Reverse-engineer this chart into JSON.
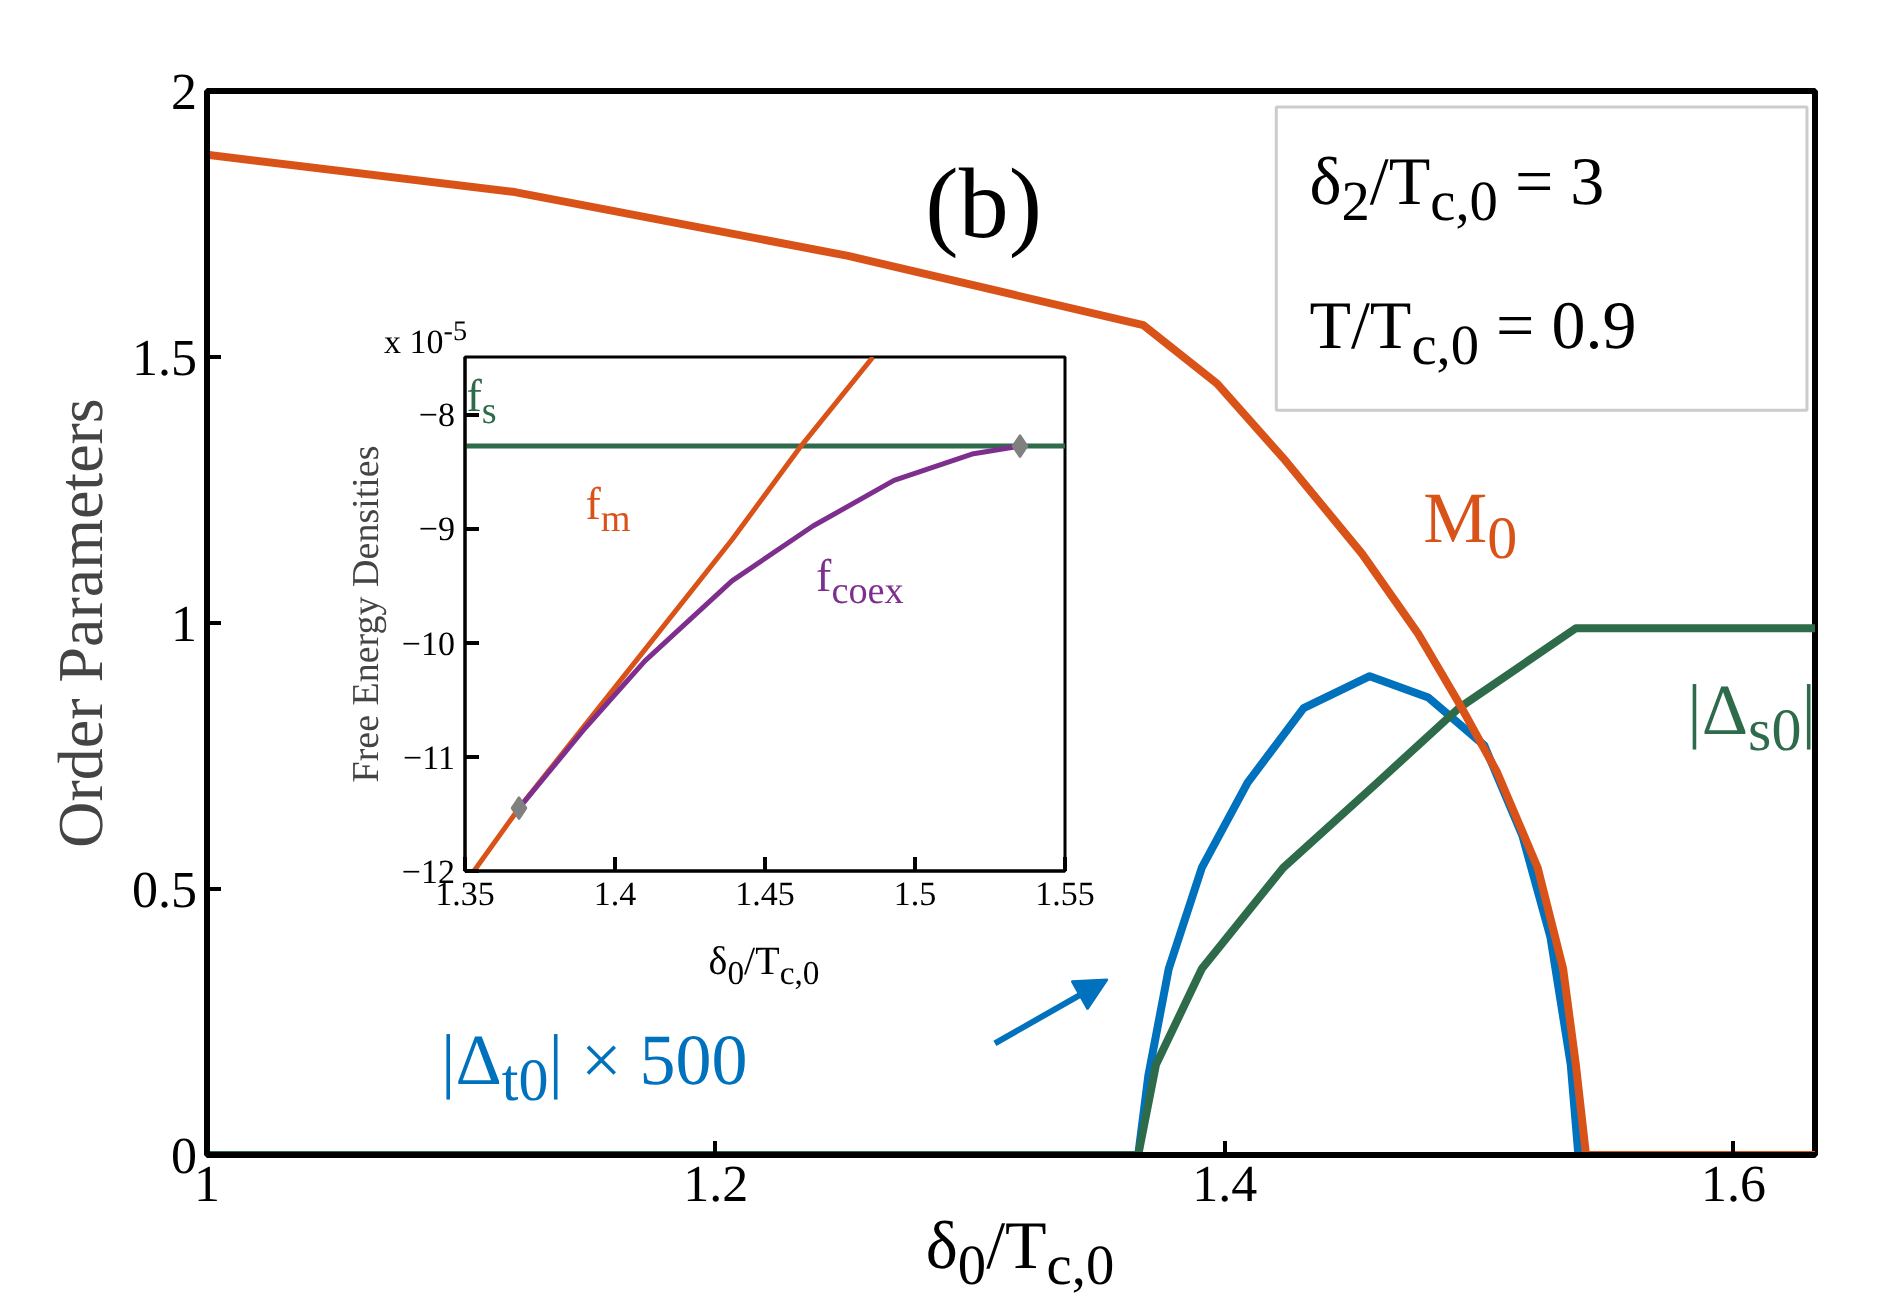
{
  "chart_data": [
    {
      "type": "line",
      "title": "(b)",
      "xlabel": "δ$_{0}$/T$_{c,0}$",
      "ylabel": "Order Parameters",
      "xlim": [
        1,
        1.632
      ],
      "ylim": [
        0,
        2
      ],
      "xticks": [
        1,
        1.2,
        1.4,
        1.6
      ],
      "yticks": [
        0,
        0.5,
        1,
        1.5,
        2
      ],
      "annotations": [
        "δ$_{2}$/T$_{c,0}$ = 3",
        "T/T$_{c,0}$ = 0.9"
      ],
      "series": [
        {
          "name": "|Δ$_{t0}$| × 500",
          "color": "#0072bd",
          "x": [
            1,
            1.366,
            1.37,
            1.378,
            1.391,
            1.409,
            1.431,
            1.457,
            1.48,
            1.502,
            1.517,
            1.528,
            1.536,
            1.539
          ],
          "values": [
            0,
            0,
            0.15,
            0.35,
            0.54,
            0.7,
            0.84,
            0.9,
            0.86,
            0.77,
            0.6,
            0.41,
            0.17,
            0
          ]
        },
        {
          "name": "|Δ$_{s0}$|",
          "color": "#2e6b4a",
          "x": [
            1,
            1.366,
            1.373,
            1.391,
            1.423,
            1.46,
            1.492,
            1.538,
            1.632
          ],
          "values": [
            0,
            0,
            0.17,
            0.35,
            0.54,
            0.7,
            0.84,
            0.99,
            0.99
          ]
        },
        {
          "name": "M$_{0}$",
          "color": "#d95319",
          "x": [
            1,
            1.121,
            1.252,
            1.368,
            1.397,
            1.423,
            1.454,
            1.476,
            1.492,
            1.507,
            1.523,
            1.533,
            1.538,
            1.542,
            1.632
          ],
          "values": [
            1.88,
            1.81,
            1.69,
            1.56,
            1.45,
            1.31,
            1.13,
            0.98,
            0.85,
            0.72,
            0.54,
            0.35,
            0.17,
            0,
            0
          ]
        }
      ]
    },
    {
      "type": "line",
      "xlabel": "δ$_{0}$/T$_{c,0}$",
      "ylabel": "Free Energy Densities",
      "xlim": [
        1.35,
        1.55
      ],
      "ylim": [
        -12,
        -7.5
      ],
      "xticks": [
        1.35,
        1.4,
        1.45,
        1.5,
        1.55
      ],
      "yticks": [
        {
          "value": -12,
          "label": "−12"
        },
        {
          "value": -11,
          "label": "−11"
        },
        {
          "value": -10,
          "label": "−10"
        },
        {
          "value": -9,
          "label": "−9"
        },
        {
          "value": -8,
          "label": "−8"
        }
      ],
      "annotations": [
        "x 10$^{-5}$"
      ],
      "series": [
        {
          "name": "f$_{s}$",
          "color": "#2e6b4a",
          "x": [
            1.35,
            1.55
          ],
          "values": [
            -8.28,
            -8.28
          ]
        },
        {
          "name": "f$_{m}$",
          "color": "#d95319",
          "x": [
            1.353,
            1.368,
            1.407,
            1.439,
            1.462,
            1.486
          ],
          "values": [
            -12,
            -11.45,
            -10.16,
            -9.1,
            -8.28,
            -7.5
          ]
        },
        {
          "name": "f$_{coex}$",
          "color": "#7e2f8e",
          "x": [
            1.368,
            1.39,
            1.41,
            1.439,
            1.466,
            1.493,
            1.519,
            1.535
          ],
          "values": [
            -11.45,
            -10.75,
            -10.16,
            -9.46,
            -8.98,
            -8.58,
            -8.35,
            -8.28
          ]
        },
        {
          "type": "scatter",
          "marker": "diamond",
          "color": "#808080",
          "x": [
            1.368,
            1.535
          ],
          "values": [
            -11.45,
            -8.28
          ]
        }
      ]
    }
  ]
}
